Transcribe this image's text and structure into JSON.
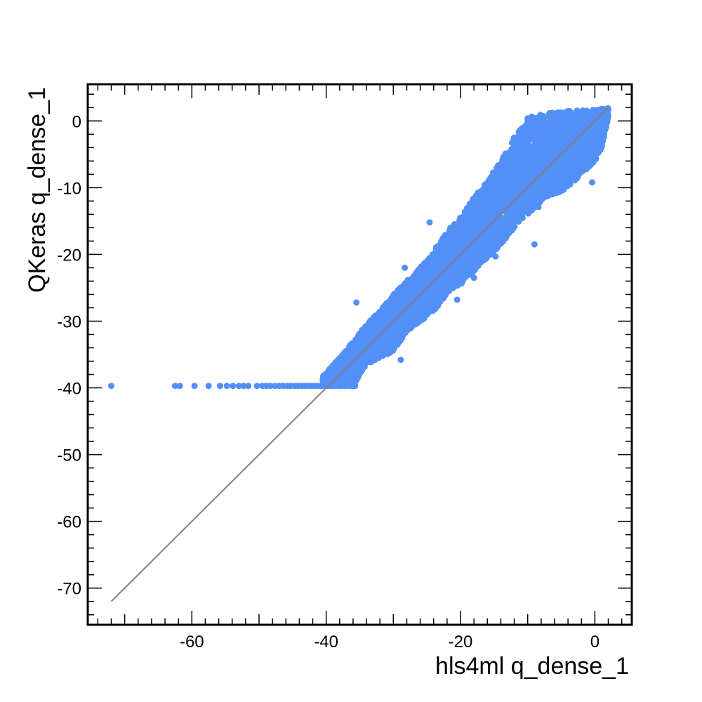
{
  "chart_data": {
    "type": "scatter",
    "title": "",
    "xlabel": "hls4ml q_dense_1",
    "ylabel": "QKeras q_dense_1",
    "xlim": [
      -75.5,
      5.5
    ],
    "ylim": [
      -75.5,
      5.5
    ],
    "x_ticks": [
      -60,
      -40,
      -20,
      0
    ],
    "x_tick_labels": [
      "-60",
      "-40",
      "-20",
      "0"
    ],
    "y_ticks": [
      0,
      -10,
      -20,
      -30,
      -40,
      -50,
      -60,
      -70
    ],
    "y_tick_labels": [
      "0",
      "-10",
      "-20",
      "-30",
      "-40",
      "-50",
      "-60",
      "-70"
    ],
    "grid": false,
    "colors": {
      "points": "#5290f7",
      "reference_line": "#808080",
      "frame": "#000000"
    },
    "reference_line": {
      "name": "",
      "x": [
        -72,
        2
      ],
      "y": [
        -72,
        2
      ]
    },
    "series": [
      {
        "name": "",
        "saturation_points": {
          "x": [
            -72,
            -62.5,
            -61.8,
            -59.6,
            -57.5,
            -55.8,
            -54.8,
            -53.9,
            -53.0,
            -52.3,
            -51.6,
            -50.3,
            -49.5,
            -48.9,
            -48.3,
            -47.6,
            -47.0,
            -46.4,
            -45.8,
            -45.3,
            -44.7,
            -44.2,
            -43.7,
            -43.2,
            -42.7,
            -42.2,
            -41.7,
            -41.2,
            -40.7,
            -40.2,
            -39.7,
            -39.2,
            -38.7,
            -38.2,
            -37.7,
            -37.2,
            -36.7,
            -36.2,
            -35.7
          ],
          "y": [
            -39.7,
            -39.7,
            -39.7,
            -39.7,
            -39.7,
            -39.7,
            -39.7,
            -39.7,
            -39.7,
            -39.7,
            -39.7,
            -39.7,
            -39.7,
            -39.7,
            -39.7,
            -39.7,
            -39.7,
            -39.7,
            -39.7,
            -39.7,
            -39.7,
            -39.7,
            -39.7,
            -39.7,
            -39.7,
            -39.7,
            -39.7,
            -39.7,
            -39.7,
            -39.7,
            -39.7,
            -39.7,
            -39.7,
            -39.7,
            -39.7,
            -39.7,
            -39.7,
            -39.7,
            -39.7
          ]
        },
        "cloud_band": [
          {
            "x": -40.5,
            "y_min": -39.7,
            "y_max": -38.3
          },
          {
            "x": -38,
            "y_min": -39.7,
            "y_max": -35.5
          },
          {
            "x": -36,
            "y_min": -39.7,
            "y_max": -33.0
          },
          {
            "x": -34,
            "y_min": -36.5,
            "y_max": -30.5
          },
          {
            "x": -32,
            "y_min": -35.5,
            "y_max": -28.5
          },
          {
            "x": -30,
            "y_min": -34.5,
            "y_max": -26.0
          },
          {
            "x": -28,
            "y_min": -31.5,
            "y_max": -24.0
          },
          {
            "x": -26,
            "y_min": -30.0,
            "y_max": -22.0
          },
          {
            "x": -24,
            "y_min": -28.5,
            "y_max": -19.5
          },
          {
            "x": -22,
            "y_min": -26.0,
            "y_max": -16.5
          },
          {
            "x": -20,
            "y_min": -24.5,
            "y_max": -14.5
          },
          {
            "x": -18,
            "y_min": -22.5,
            "y_max": -11.5
          },
          {
            "x": -16,
            "y_min": -20.5,
            "y_max": -9.0
          },
          {
            "x": -14,
            "y_min": -18.5,
            "y_max": -6.0
          },
          {
            "x": -12,
            "y_min": -16.0,
            "y_max": -2.5
          },
          {
            "x": -10,
            "y_min": -14.0,
            "y_max": 0.5
          },
          {
            "x": -8,
            "y_min": -12.0,
            "y_max": 1.0
          },
          {
            "x": -6,
            "y_min": -11.0,
            "y_max": 1.3
          },
          {
            "x": -4,
            "y_min": -10.0,
            "y_max": 1.5
          },
          {
            "x": -2,
            "y_min": -8.0,
            "y_max": 1.6
          },
          {
            "x": 0,
            "y_min": -6.0,
            "y_max": 1.7
          },
          {
            "x": 1,
            "y_min": -4.0,
            "y_max": 1.8
          },
          {
            "x": 2,
            "y_min": 0.5,
            "y_max": 1.9
          }
        ],
        "outliers": {
          "x": [
            -35.5,
            -37.2,
            -34.0,
            -31.8,
            -28.9,
            -29.1,
            -27.0,
            -26.3,
            -23.0,
            -22.1,
            -20.5,
            -18.0,
            -14.8,
            -13.9,
            -12.3,
            -11.0,
            -8.4,
            -6.3,
            -3.8,
            -0.4,
            -9.0,
            -20.0,
            -24.6,
            -28.3,
            -27.6,
            -12.0,
            -5.0
          ],
          "y": [
            -27.2,
            -36.5,
            -36.2,
            -35.0,
            -35.8,
            -30.9,
            -30.1,
            -29.2,
            -21.5,
            -25.3,
            -26.8,
            -23.5,
            -20.3,
            -18.0,
            -15.2,
            -13.8,
            -12.9,
            -9.8,
            -9.5,
            -9.2,
            -18.5,
            -18.5,
            -15.2,
            -22.0,
            -29.5,
            -2.5,
            -1.5
          ]
        }
      }
    ]
  }
}
